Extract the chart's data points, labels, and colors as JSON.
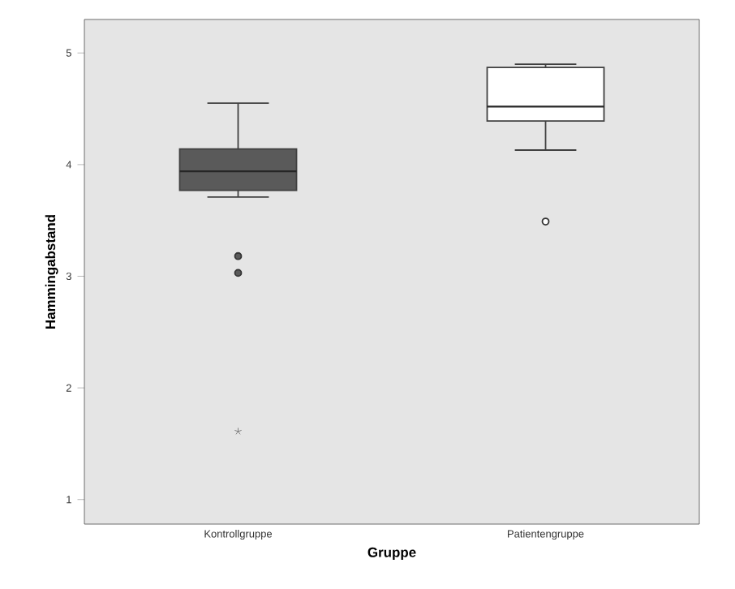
{
  "chart_data": {
    "type": "box",
    "xlabel": "Gruppe",
    "ylabel": "Hammingabstand",
    "categories": [
      "Kontrollgruppe",
      "Patientengruppe"
    ],
    "boxes": [
      {
        "low": 3.71,
        "q1": 3.77,
        "median": 3.94,
        "q3": 4.14,
        "high": 4.55,
        "outliers": [
          3.18,
          3.03,
          1.61
        ]
      },
      {
        "low": 4.13,
        "q1": 4.39,
        "median": 4.52,
        "q3": 4.87,
        "high": 4.9,
        "outliers": [
          3.49
        ]
      }
    ],
    "colors": [
      "#5a5a5a",
      "#ffffff"
    ],
    "ylim": [
      0.78,
      5.3
    ],
    "yticks": [
      1,
      2,
      3,
      4,
      5
    ],
    "grid": false
  }
}
